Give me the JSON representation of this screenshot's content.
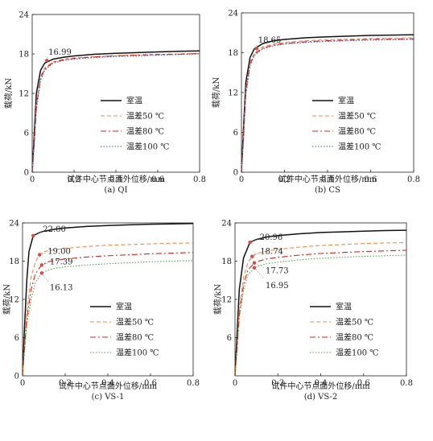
{
  "figure": {
    "legend_labels": [
      "室温",
      "温差50 ℃",
      "温差80 ℃",
      "温差100 ℃"
    ]
  },
  "style": {
    "colors": {
      "室温": "#111111",
      "温差50 ℃": "#f28a4b",
      "温差80 ℃": "#d62020",
      "温差100 ℃": "#3a5fc8",
      "温差100 ℃ (VS)": "#4aa84a",
      "annotation": "#e0443a"
    },
    "dash": {
      "室温": "",
      "温差50 ℃": "5,3",
      "温差80 ℃": "7,3,2,3",
      "温差100 ℃": "1.5,2"
    }
  },
  "chart_data": [
    {
      "type": "line",
      "caption": "(a) QI",
      "xlabel": "试件中心节点面外位移/mm",
      "ylabel": "载荷/kN",
      "xlim": [
        0,
        0.8
      ],
      "ylim": [
        0,
        24
      ],
      "xticks": [
        "0",
        "0.2",
        "0.4",
        "0.6",
        "0.8"
      ],
      "yticks": [
        "0",
        "6",
        "12",
        "18",
        "24"
      ],
      "grid": false,
      "legend_position": "lower-right",
      "annotations": [
        {
          "text": "16.99",
          "x": 0.07,
          "y": 16.99
        }
      ],
      "series": [
        {
          "name": "室温",
          "x": [
            0,
            0.01,
            0.02,
            0.04,
            0.06,
            0.1,
            0.15,
            0.2,
            0.3,
            0.4,
            0.5,
            0.6,
            0.7,
            0.8
          ],
          "y": [
            0,
            6,
            12,
            15.5,
            16.6,
            17.2,
            17.5,
            17.7,
            17.95,
            18.1,
            18.2,
            18.3,
            18.4,
            18.45
          ]
        },
        {
          "name": "温差50 ℃",
          "x": [
            0,
            0.01,
            0.02,
            0.04,
            0.06,
            0.1,
            0.15,
            0.2,
            0.3,
            0.4,
            0.5,
            0.6,
            0.7,
            0.8
          ],
          "y": [
            0,
            5,
            10.5,
            14.6,
            15.9,
            16.8,
            17.2,
            17.4,
            17.6,
            17.75,
            17.85,
            17.95,
            18.0,
            18.1
          ]
        },
        {
          "name": "温差80 ℃",
          "x": [
            0,
            0.01,
            0.02,
            0.04,
            0.06,
            0.1,
            0.15,
            0.2,
            0.3,
            0.4,
            0.5,
            0.6,
            0.7,
            0.8
          ],
          "y": [
            0,
            4.5,
            10,
            14.3,
            15.7,
            16.7,
            17.1,
            17.3,
            17.55,
            17.7,
            17.8,
            17.9,
            17.95,
            18.05
          ]
        },
        {
          "name": "温差100 ℃",
          "x": [
            0,
            0.01,
            0.02,
            0.04,
            0.06,
            0.1,
            0.15,
            0.2,
            0.3,
            0.4,
            0.5,
            0.6,
            0.7,
            0.8
          ],
          "y": [
            0,
            4,
            9.5,
            14,
            15.5,
            16.6,
            17.0,
            17.2,
            17.45,
            17.6,
            17.7,
            17.8,
            17.9,
            18.0
          ]
        }
      ]
    },
    {
      "type": "line",
      "caption": "(b) CS",
      "xlabel": "试件中心节点面外位移/mm",
      "ylabel": "载荷/kN",
      "xlim": [
        0,
        0.8
      ],
      "ylim": [
        0,
        24
      ],
      "xticks": [
        "0",
        "0.2",
        "0.4",
        "0.6",
        "0.8"
      ],
      "yticks": [
        "0",
        "6",
        "12",
        "18",
        "24"
      ],
      "grid": false,
      "legend_position": "lower-right",
      "annotations": [
        {
          "text": "18.65",
          "x": 0.07,
          "y": 18.65
        }
      ],
      "series": [
        {
          "name": "室温",
          "x": [
            0,
            0.01,
            0.02,
            0.04,
            0.06,
            0.1,
            0.15,
            0.2,
            0.3,
            0.4,
            0.5,
            0.6,
            0.7,
            0.8
          ],
          "y": [
            0,
            7,
            13.5,
            17.3,
            18.6,
            19.4,
            19.8,
            20.0,
            20.25,
            20.4,
            20.5,
            20.6,
            20.65,
            20.7
          ]
        },
        {
          "name": "温差50 ℃",
          "x": [
            0,
            0.01,
            0.02,
            0.04,
            0.06,
            0.1,
            0.15,
            0.2,
            0.3,
            0.4,
            0.5,
            0.6,
            0.7,
            0.8
          ],
          "y": [
            0,
            6,
            12.5,
            16.6,
            18.0,
            18.9,
            19.3,
            19.55,
            19.8,
            19.95,
            20.05,
            20.15,
            20.2,
            20.25
          ]
        },
        {
          "name": "温差80 ℃",
          "x": [
            0,
            0.01,
            0.02,
            0.04,
            0.06,
            0.1,
            0.15,
            0.2,
            0.3,
            0.4,
            0.5,
            0.6,
            0.7,
            0.8
          ],
          "y": [
            0,
            5.5,
            12,
            16.3,
            17.8,
            18.7,
            19.15,
            19.4,
            19.65,
            19.8,
            19.9,
            20.0,
            20.05,
            20.1
          ]
        },
        {
          "name": "温差100 ℃",
          "x": [
            0,
            0.01,
            0.02,
            0.04,
            0.06,
            0.1,
            0.15,
            0.2,
            0.3,
            0.4,
            0.5,
            0.6,
            0.7,
            0.8
          ],
          "y": [
            0,
            5,
            11.5,
            16.0,
            17.6,
            18.6,
            19.05,
            19.3,
            19.55,
            19.7,
            19.8,
            19.9,
            19.95,
            20.0
          ]
        }
      ]
    },
    {
      "type": "line",
      "caption": "(c) VS-1",
      "xlabel": "试件中心节点面外位移/mm",
      "ylabel": "载荷/kN",
      "xlim": [
        0,
        0.8
      ],
      "ylim": [
        0,
        24
      ],
      "xticks": [
        "0",
        "0.2",
        "0.4",
        "0.6",
        "0.8"
      ],
      "yticks": [
        "0",
        "6",
        "12",
        "18",
        "24"
      ],
      "grid": false,
      "legend_position": "lower-right",
      "annotations": [
        {
          "text": "22.00",
          "x": 0.05,
          "y": 22.0
        },
        {
          "text": "19.00",
          "x": 0.08,
          "y": 19.0
        },
        {
          "text": "17.39",
          "x": 0.09,
          "y": 17.39
        },
        {
          "text": "16.13",
          "x": 0.09,
          "y": 16.13
        }
      ],
      "series": [
        {
          "name": "室温",
          "x": [
            0,
            0.01,
            0.02,
            0.03,
            0.05,
            0.08,
            0.1,
            0.15,
            0.2,
            0.3,
            0.4,
            0.5,
            0.6,
            0.7,
            0.8
          ],
          "y": [
            0,
            8,
            15,
            19.5,
            22.0,
            22.5,
            22.7,
            23.0,
            23.2,
            23.45,
            23.6,
            23.7,
            23.8,
            23.85,
            23.9
          ]
        },
        {
          "name": "温差50 ℃",
          "x": [
            0,
            0.01,
            0.02,
            0.04,
            0.06,
            0.08,
            0.1,
            0.15,
            0.2,
            0.3,
            0.4,
            0.5,
            0.6,
            0.7,
            0.8
          ],
          "y": [
            0,
            5,
            10,
            15.5,
            17.8,
            19.0,
            19.5,
            19.8,
            20.0,
            20.3,
            20.5,
            20.6,
            20.7,
            20.8,
            20.85
          ]
        },
        {
          "name": "温差80 ℃",
          "x": [
            0,
            0.01,
            0.02,
            0.04,
            0.06,
            0.09,
            0.12,
            0.15,
            0.2,
            0.3,
            0.4,
            0.5,
            0.6,
            0.7,
            0.8
          ],
          "y": [
            0,
            4.5,
            9,
            13.5,
            16.0,
            17.39,
            17.9,
            18.1,
            18.35,
            18.65,
            18.85,
            19.0,
            19.15,
            19.25,
            19.35
          ]
        },
        {
          "name": "温差100 ℃",
          "x": [
            0,
            0.01,
            0.02,
            0.04,
            0.06,
            0.09,
            0.12,
            0.15,
            0.2,
            0.3,
            0.4,
            0.5,
            0.6,
            0.7,
            0.8
          ],
          "y": [
            0,
            4,
            8,
            12,
            14.6,
            16.13,
            16.6,
            16.85,
            17.1,
            17.4,
            17.6,
            17.75,
            17.9,
            18.0,
            18.1
          ]
        }
      ]
    },
    {
      "type": "line",
      "caption": "(d) VS-2",
      "xlabel": "试件中心节点面外位移/mm",
      "ylabel": "载荷/kN",
      "xlim": [
        0,
        0.8
      ],
      "ylim": [
        0,
        24
      ],
      "xticks": [
        "0",
        "0.2",
        "0.4",
        "0.6",
        "0.8"
      ],
      "yticks": [
        "6",
        "12",
        "18",
        "24"
      ],
      "grid": false,
      "legend_position": "lower-right",
      "annotations": [
        {
          "text": "20.96",
          "x": 0.07,
          "y": 20.96
        },
        {
          "text": "18.74",
          "x": 0.08,
          "y": 18.74
        },
        {
          "text": "17.73",
          "x": 0.09,
          "y": 17.73
        },
        {
          "text": "16.95",
          "x": 0.09,
          "y": 16.95
        }
      ],
      "series": [
        {
          "name": "室温",
          "x": [
            0,
            0.01,
            0.02,
            0.04,
            0.07,
            0.1,
            0.15,
            0.2,
            0.3,
            0.4,
            0.5,
            0.6,
            0.7,
            0.8
          ],
          "y": [
            0,
            7,
            13.5,
            18.5,
            20.96,
            21.4,
            21.8,
            22.0,
            22.3,
            22.5,
            22.6,
            22.7,
            22.8,
            22.85
          ]
        },
        {
          "name": "温差50 ℃",
          "x": [
            0,
            0.01,
            0.02,
            0.04,
            0.06,
            0.08,
            0.1,
            0.15,
            0.2,
            0.3,
            0.4,
            0.5,
            0.6,
            0.7,
            0.8
          ],
          "y": [
            0,
            5,
            10.5,
            15.5,
            17.8,
            18.74,
            19.2,
            19.6,
            19.85,
            20.2,
            20.45,
            20.6,
            20.75,
            20.85,
            20.9
          ]
        },
        {
          "name": "温差80 ℃",
          "x": [
            0,
            0.01,
            0.02,
            0.04,
            0.06,
            0.09,
            0.12,
            0.15,
            0.2,
            0.3,
            0.4,
            0.5,
            0.6,
            0.7,
            0.8
          ],
          "y": [
            0,
            4.5,
            9.5,
            14.3,
            16.6,
            17.73,
            18.1,
            18.35,
            18.6,
            18.95,
            19.2,
            19.35,
            19.5,
            19.6,
            19.7
          ]
        },
        {
          "name": "温差100 ℃",
          "x": [
            0,
            0.01,
            0.02,
            0.04,
            0.06,
            0.09,
            0.12,
            0.15,
            0.2,
            0.3,
            0.4,
            0.5,
            0.6,
            0.7,
            0.8
          ],
          "y": [
            0,
            4,
            9,
            13.5,
            15.8,
            16.95,
            17.35,
            17.6,
            17.85,
            18.2,
            18.45,
            18.6,
            18.75,
            18.85,
            18.95
          ]
        }
      ]
    }
  ]
}
